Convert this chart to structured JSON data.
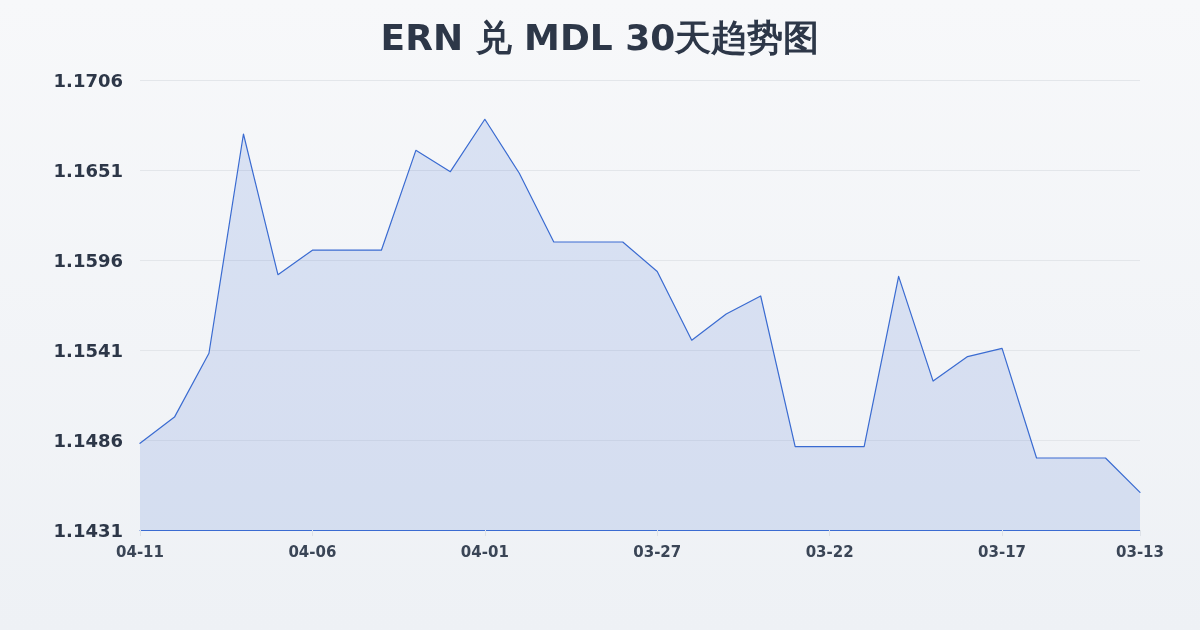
{
  "chart_data": {
    "type": "area",
    "title": "ERN 兑 MDL 30天趋势图",
    "categories": [
      "04-11",
      null,
      null,
      null,
      null,
      "04-06",
      null,
      null,
      null,
      null,
      "04-01",
      null,
      null,
      null,
      null,
      "03-27",
      null,
      null,
      null,
      null,
      "03-22",
      null,
      null,
      null,
      null,
      "03-17",
      null,
      null,
      null,
      "03-13"
    ],
    "values": [
      1.1484,
      1.15,
      1.1539,
      1.1673,
      1.1587,
      1.1602,
      1.1602,
      1.1602,
      1.1663,
      1.165,
      1.1682,
      1.1649,
      1.1607,
      1.1607,
      1.1607,
      1.1589,
      1.1547,
      1.1563,
      1.1574,
      1.1482,
      1.1482,
      1.1482,
      1.1586,
      1.1522,
      1.1537,
      1.1542,
      1.1475,
      1.1475,
      1.1475,
      1.1454
    ],
    "color": "#3a6bd1",
    "ylim": [
      1.1431,
      1.1706
    ],
    "yticks": [
      1.1431,
      1.1486,
      1.1541,
      1.1596,
      1.1651,
      1.1706
    ],
    "grid": "y",
    "marker": "none"
  }
}
